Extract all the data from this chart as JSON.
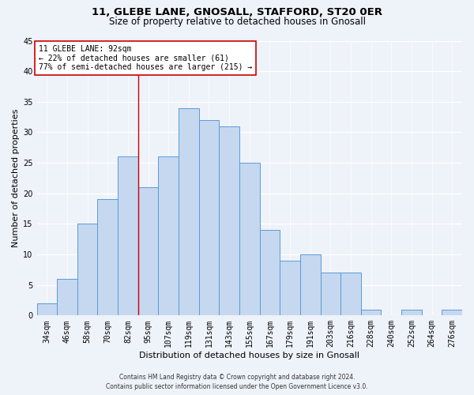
{
  "title1": "11, GLEBE LANE, GNOSALL, STAFFORD, ST20 0ER",
  "title2": "Size of property relative to detached houses in Gnosall",
  "xlabel": "Distribution of detached houses by size in Gnosall",
  "ylabel": "Number of detached properties",
  "categories": [
    "34sqm",
    "46sqm",
    "58sqm",
    "70sqm",
    "82sqm",
    "95sqm",
    "107sqm",
    "119sqm",
    "131sqm",
    "143sqm",
    "155sqm",
    "167sqm",
    "179sqm",
    "191sqm",
    "203sqm",
    "216sqm",
    "228sqm",
    "240sqm",
    "252sqm",
    "264sqm",
    "276sqm"
  ],
  "values": [
    2,
    6,
    15,
    19,
    26,
    21,
    26,
    34,
    32,
    31,
    25,
    14,
    9,
    10,
    7,
    7,
    1,
    0,
    1,
    0,
    1
  ],
  "bar_color": "#c5d8f0",
  "bar_edge_color": "#5b9bd5",
  "vline_x": 4.5,
  "vline_color": "#cc0000",
  "annotation_text": "11 GLEBE LANE: 92sqm\n← 22% of detached houses are smaller (61)\n77% of semi-detached houses are larger (215) →",
  "annotation_box_color": "white",
  "annotation_box_edge_color": "#cc0000",
  "ylim": [
    0,
    45
  ],
  "yticks": [
    0,
    5,
    10,
    15,
    20,
    25,
    30,
    35,
    40,
    45
  ],
  "background_color": "#eef2f9",
  "grid_color": "white",
  "footer_line1": "Contains HM Land Registry data © Crown copyright and database right 2024.",
  "footer_line2": "Contains public sector information licensed under the Open Government Licence v3.0.",
  "title1_fontsize": 9.5,
  "title2_fontsize": 8.5,
  "xlabel_fontsize": 8,
  "ylabel_fontsize": 8,
  "tick_fontsize": 7,
  "annotation_fontsize": 7,
  "footer_fontsize": 5.5
}
